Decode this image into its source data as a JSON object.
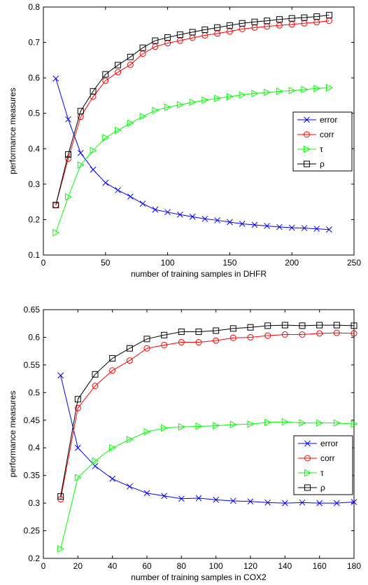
{
  "chart_data": [
    {
      "type": "line",
      "xlabel": "number of training samples in DHFR",
      "ylabel": "performance measures",
      "xlim": [
        0,
        250
      ],
      "ylim": [
        0.1,
        0.8
      ],
      "xticks": [
        0,
        50,
        100,
        150,
        200,
        250
      ],
      "yticks": [
        0.1,
        0.2,
        0.3,
        0.4,
        0.5,
        0.6,
        0.7,
        0.8
      ],
      "grid": false,
      "legend_position": "right",
      "x": [
        10,
        20,
        30,
        40,
        50,
        60,
        70,
        80,
        90,
        100,
        110,
        120,
        130,
        140,
        150,
        160,
        170,
        180,
        190,
        200,
        210,
        220,
        230
      ],
      "series": [
        {
          "name": "error",
          "color": "#0000ff",
          "marker": "x",
          "values": [
            0.598,
            0.483,
            0.388,
            0.341,
            0.304,
            0.283,
            0.265,
            0.245,
            0.228,
            0.221,
            0.214,
            0.208,
            0.202,
            0.198,
            0.193,
            0.188,
            0.185,
            0.182,
            0.179,
            0.177,
            0.176,
            0.174,
            0.172
          ]
        },
        {
          "name": "corr",
          "color": "#ff0000",
          "marker": "circle",
          "values": [
            0.241,
            0.372,
            0.49,
            0.547,
            0.592,
            0.616,
            0.637,
            0.668,
            0.688,
            0.698,
            0.705,
            0.713,
            0.72,
            0.725,
            0.731,
            0.738,
            0.742,
            0.745,
            0.748,
            0.751,
            0.754,
            0.757,
            0.761
          ]
        },
        {
          "name": "τ",
          "color": "#00ff00",
          "marker": "triangle-right",
          "values": [
            0.163,
            0.264,
            0.354,
            0.395,
            0.431,
            0.452,
            0.472,
            0.491,
            0.508,
            0.517,
            0.524,
            0.531,
            0.537,
            0.542,
            0.547,
            0.552,
            0.556,
            0.559,
            0.562,
            0.564,
            0.567,
            0.57,
            0.572
          ]
        },
        {
          "name": "ρ",
          "color": "#000000",
          "marker": "square",
          "values": [
            0.241,
            0.384,
            0.506,
            0.562,
            0.61,
            0.636,
            0.659,
            0.685,
            0.705,
            0.714,
            0.722,
            0.729,
            0.736,
            0.742,
            0.748,
            0.754,
            0.758,
            0.761,
            0.765,
            0.768,
            0.77,
            0.773,
            0.777
          ]
        }
      ]
    },
    {
      "type": "line",
      "xlabel": "number of training samples in COX2",
      "ylabel": "performance measures",
      "xlim": [
        0,
        180
      ],
      "ylim": [
        0.2,
        0.65
      ],
      "xticks": [
        0,
        20,
        40,
        60,
        80,
        100,
        120,
        140,
        160,
        180
      ],
      "yticks": [
        0.2,
        0.25,
        0.3,
        0.35,
        0.4,
        0.45,
        0.5,
        0.55,
        0.6,
        0.65
      ],
      "grid": false,
      "legend_position": "right",
      "x": [
        10,
        20,
        30,
        40,
        50,
        60,
        70,
        80,
        90,
        100,
        110,
        120,
        130,
        140,
        150,
        160,
        170,
        180
      ],
      "series": [
        {
          "name": "error",
          "color": "#0000ff",
          "marker": "x",
          "values": [
            0.531,
            0.4,
            0.367,
            0.344,
            0.33,
            0.318,
            0.313,
            0.308,
            0.309,
            0.306,
            0.304,
            0.303,
            0.301,
            0.3,
            0.301,
            0.3,
            0.3,
            0.302
          ]
        },
        {
          "name": "corr",
          "color": "#ff0000",
          "marker": "circle",
          "values": [
            0.307,
            0.472,
            0.512,
            0.54,
            0.558,
            0.58,
            0.586,
            0.591,
            0.591,
            0.594,
            0.599,
            0.6,
            0.603,
            0.605,
            0.605,
            0.607,
            0.608,
            0.607
          ]
        },
        {
          "name": "τ",
          "color": "#00ff00",
          "marker": "triangle-right",
          "values": [
            0.217,
            0.346,
            0.376,
            0.4,
            0.415,
            0.429,
            0.436,
            0.438,
            0.439,
            0.44,
            0.442,
            0.443,
            0.446,
            0.447,
            0.445,
            0.445,
            0.445,
            0.443
          ]
        },
        {
          "name": "ρ",
          "color": "#000000",
          "marker": "square",
          "values": [
            0.312,
            0.488,
            0.533,
            0.562,
            0.58,
            0.597,
            0.604,
            0.61,
            0.61,
            0.612,
            0.616,
            0.618,
            0.621,
            0.622,
            0.621,
            0.622,
            0.622,
            0.621
          ]
        }
      ]
    }
  ]
}
